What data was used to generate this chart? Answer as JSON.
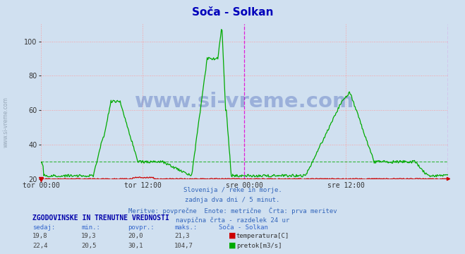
{
  "title": "Soča - Solkan",
  "bg_color": "#d0e0f0",
  "grid_color": "#ff9999",
  "temp_color": "#cc0000",
  "flow_color": "#00aa00",
  "vline_color": "#dd00dd",
  "ylim": [
    20,
    110
  ],
  "yticks": [
    20,
    40,
    60,
    80,
    100
  ],
  "xtick_labels": [
    "tor 00:00",
    "tor 12:00",
    "sre 00:00",
    "sre 12:00"
  ],
  "subtitle_lines": [
    "Slovenija / reke in morje.",
    "zadnja dva dni / 5 minut.",
    "Meritve: povprečne  Enote: metrične  Črta: prva meritev",
    "navpična črta - razdelek 24 ur"
  ],
  "table_header": "ZGODOVINSKE IN TRENUTNE VREDNOSTI",
  "table_cols": [
    "sedaj:",
    "min.:",
    "povpr.:",
    "maks.:",
    "Soča - Solkan"
  ],
  "temp_row": [
    "19,8",
    "19,3",
    "20,0",
    "21,3",
    "temperatura[C]"
  ],
  "flow_row": [
    "22,4",
    "20,5",
    "30,1",
    "104,7",
    "pretok[m3/s]"
  ],
  "flow_avg": 30.1,
  "temp_avg": 20.0,
  "watermark": "www.si-vreme.com",
  "n_points": 576
}
